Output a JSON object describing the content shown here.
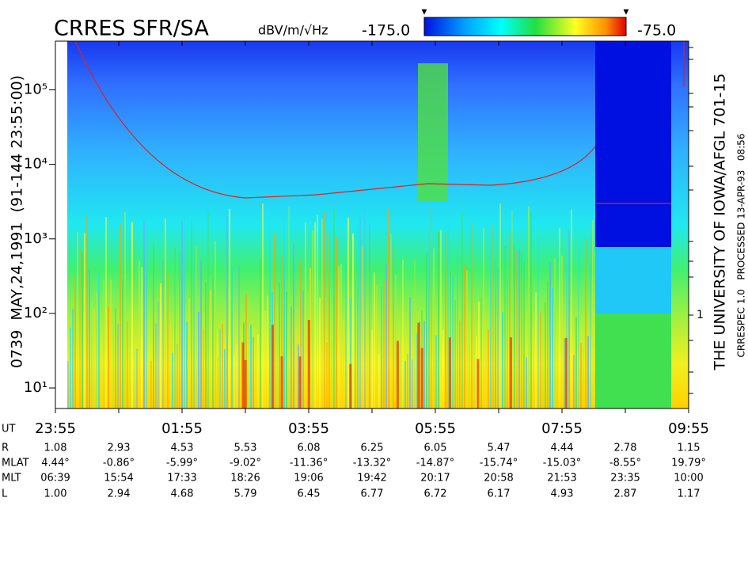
{
  "chart_data": {
    "type": "spectrogram",
    "title": "CRRES SFR/SA",
    "colorbar": {
      "label": "dBV/m/√Hz",
      "lim": [
        {
          "value": -175,
          "label": "-175.0"
        },
        {
          "value": -75,
          "label": "-75.0"
        }
      ]
    },
    "ylog": true,
    "ylim": [
      5.3,
      450000
    ],
    "yticks": [
      {
        "value": 10,
        "label": "10¹"
      },
      {
        "value": 100,
        "label": "10²"
      },
      {
        "value": 1000,
        "label": "10³"
      },
      {
        "value": 10000,
        "label": "10⁴"
      },
      {
        "value": 100000,
        "label": "10⁵"
      }
    ],
    "y2_tick_label": "1",
    "x_row_label": "UT",
    "categories": [
      "23:55",
      null,
      "01:55",
      null,
      "03:55",
      null,
      "05:55",
      null,
      "07:55",
      null,
      "09:55"
    ],
    "ephemeris": [
      {
        "name": "R",
        "values": [
          1.08,
          2.93,
          4.53,
          5.53,
          6.08,
          6.25,
          6.05,
          5.47,
          4.44,
          2.78,
          1.15
        ],
        "value_labels": [
          "1.08",
          "2.93",
          "4.53",
          "5.53",
          "6.08",
          "6.25",
          "6.05",
          "5.47",
          "4.44",
          "2.78",
          "1.15"
        ]
      },
      {
        "name": "MLAT",
        "values": [
          4.44,
          -0.86,
          -5.99,
          -9.02,
          -11.36,
          -13.32,
          -14.87,
          -15.74,
          -15.03,
          -8.55,
          19.79
        ],
        "value_labels": [
          "4.44°",
          "-0.86°",
          "-5.99°",
          "-9.02°",
          "-11.36°",
          "-13.32°",
          "-14.87°",
          "-15.74°",
          "-15.03°",
          "-8.55°",
          "19.79°"
        ]
      },
      {
        "name": "MLT",
        "labels": [
          "06:39",
          "15:54",
          "17:33",
          "18:26",
          "19:06",
          "19:42",
          "20:17",
          "20:58",
          "21:53",
          "23:35",
          "10:00"
        ]
      },
      {
        "name": "L",
        "values": [
          1,
          2.94,
          4.68,
          5.79,
          6.45,
          6.77,
          6.72,
          6.17,
          4.93,
          2.87,
          1.17
        ],
        "value_labels": [
          "1.00",
          "2.94",
          "4.68",
          "5.79",
          "6.45",
          "6.77",
          "6.72",
          "6.17",
          "4.93",
          "2.87",
          "1.17"
        ]
      }
    ],
    "left_caption": "0739  MAY,24,1991  (91-144 23:55:00)",
    "right_caption": "THE UNIVERSITY OF IOWA/AFGL 701-15",
    "right_subcaption": "CRRESPEC 1.0   PROCESSED 13-APR-93   08:56"
  }
}
